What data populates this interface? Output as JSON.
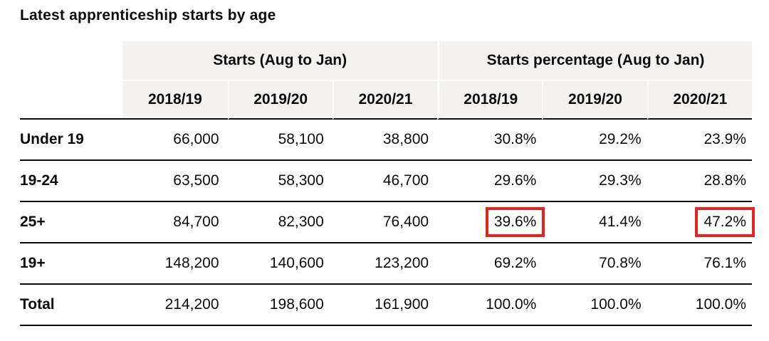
{
  "page_title": "Latest apprenticeship starts by age",
  "table": {
    "header_bg": "#f3f2f1",
    "group_headers": [
      "Starts (Aug to Jan)",
      "Starts percentage (Aug to Jan)"
    ],
    "year_headers": [
      "2018/19",
      "2019/20",
      "2020/21",
      "2018/19",
      "2019/20",
      "2020/21"
    ],
    "rows": [
      {
        "label": "Under 19",
        "values": [
          "66,000",
          "58,100",
          "38,800",
          "30.8%",
          "29.2%",
          "23.9%"
        ]
      },
      {
        "label": "19-24",
        "values": [
          "63,500",
          "58,300",
          "46,700",
          "29.6%",
          "29.3%",
          "28.8%"
        ]
      },
      {
        "label": "25+",
        "values": [
          "84,700",
          "82,300",
          "76,400",
          "39.6%",
          "41.4%",
          "47.2%"
        ]
      },
      {
        "label": "19+",
        "values": [
          "148,200",
          "140,600",
          "123,200",
          "69.2%",
          "70.8%",
          "76.1%"
        ]
      },
      {
        "label": "Total",
        "values": [
          "214,200",
          "198,600",
          "161,900",
          "100.0%",
          "100.0%",
          "100.0%"
        ]
      }
    ],
    "highlights": {
      "color": "#e8231d",
      "cells": [
        {
          "row_label": "25+",
          "column": "Starts percentage 2018/19",
          "value": "39.6%"
        },
        {
          "row_label": "25+",
          "column": "Starts percentage 2020/21",
          "value": "47.2%"
        }
      ]
    }
  },
  "chart_data": {
    "type": "table",
    "title": "Latest apprenticeship starts by age",
    "column_groups": [
      {
        "label": "Starts (Aug to Jan)",
        "columns": [
          "2018/19",
          "2019/20",
          "2020/21"
        ]
      },
      {
        "label": "Starts percentage (Aug to Jan)",
        "columns": [
          "2018/19",
          "2019/20",
          "2020/21"
        ]
      }
    ],
    "rows": [
      {
        "age_group": "Under 19",
        "starts": [
          66000,
          58100,
          38800
        ],
        "starts_percentage": [
          30.8,
          29.2,
          23.9
        ]
      },
      {
        "age_group": "19-24",
        "starts": [
          63500,
          58300,
          46700
        ],
        "starts_percentage": [
          29.6,
          29.3,
          28.8
        ]
      },
      {
        "age_group": "25+",
        "starts": [
          84700,
          82300,
          76400
        ],
        "starts_percentage": [
          39.6,
          41.4,
          47.2
        ]
      },
      {
        "age_group": "19+",
        "starts": [
          148200,
          140600,
          123200
        ],
        "starts_percentage": [
          69.2,
          70.8,
          76.1
        ]
      },
      {
        "age_group": "Total",
        "starts": [
          214200,
          198600,
          161900
        ],
        "starts_percentage": [
          100.0,
          100.0,
          100.0
        ]
      }
    ],
    "highlighted_cells": [
      {
        "age_group": "25+",
        "measure": "starts_percentage",
        "year": "2018/19",
        "value": 39.6
      },
      {
        "age_group": "25+",
        "measure": "starts_percentage",
        "year": "2020/21",
        "value": 47.2
      }
    ]
  }
}
